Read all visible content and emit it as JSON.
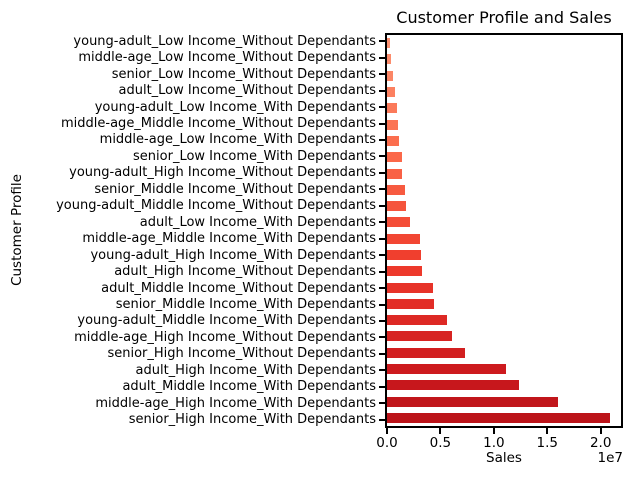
{
  "figure": {
    "background": "#ffffff",
    "axes_color": "#000000"
  },
  "chart_data": {
    "type": "bar",
    "orientation": "horizontal",
    "title": "Customer Profile and Sales",
    "xlabel": "Sales",
    "ylabel": "Customer Profile",
    "x_offset_label": "1e7",
    "xlim": [
      0,
      21900000
    ],
    "grid": false,
    "legend": null,
    "x_ticks": [
      {
        "value": 0,
        "label": "0.0"
      },
      {
        "value": 5000000,
        "label": "0.5"
      },
      {
        "value": 10000000,
        "label": "1.0"
      },
      {
        "value": 15000000,
        "label": "1.5"
      },
      {
        "value": 20000000,
        "label": "2.0"
      }
    ],
    "bars": [
      {
        "label": "young-adult_Low Income_Without Dependants",
        "value": 280000,
        "color": "#fc9272"
      },
      {
        "label": "middle-age_Low Income_Without Dependants",
        "value": 370000,
        "color": "#fc8c6c"
      },
      {
        "label": "senior_Low Income_Without Dependants",
        "value": 550000,
        "color": "#fc8666"
      },
      {
        "label": "adult_Low Income_Without Dependants",
        "value": 780000,
        "color": "#fc8060"
      },
      {
        "label": "young-adult_Low Income_With Dependants",
        "value": 950000,
        "color": "#fb7a5a"
      },
      {
        "label": "middle-age_Middle Income_Without Dependants",
        "value": 1070000,
        "color": "#fb7454"
      },
      {
        "label": "middle-age_Low Income_With Dependants",
        "value": 1080000,
        "color": "#fb6e4e"
      },
      {
        "label": "senior_Low Income_With Dependants",
        "value": 1380000,
        "color": "#fb6849"
      },
      {
        "label": "young-adult_High Income_Without Dependants",
        "value": 1440000,
        "color": "#f96145"
      },
      {
        "label": "senior_Middle Income_Without Dependants",
        "value": 1650000,
        "color": "#f75a40"
      },
      {
        "label": "young-adult_Middle Income_Without Dependants",
        "value": 1750000,
        "color": "#f5543c"
      },
      {
        "label": "adult_Low Income_With Dependants",
        "value": 2170000,
        "color": "#f44d37"
      },
      {
        "label": "middle-age_Middle Income_With Dependants",
        "value": 3120000,
        "color": "#f24633"
      },
      {
        "label": "young-adult_High Income_With Dependants",
        "value": 3220000,
        "color": "#f03f2e"
      },
      {
        "label": "adult_High Income_Without Dependants",
        "value": 3280000,
        "color": "#ed392b"
      },
      {
        "label": "adult_Middle Income_Without Dependants",
        "value": 4290000,
        "color": "#e73329"
      },
      {
        "label": "senior_Middle Income_With Dependants",
        "value": 4440000,
        "color": "#e22e27"
      },
      {
        "label": "young-adult_Middle Income_With Dependants",
        "value": 5580000,
        "color": "#dd2924"
      },
      {
        "label": "middle-age_High Income_Without Dependants",
        "value": 6130000,
        "color": "#d72422"
      },
      {
        "label": "senior_High Income_Without Dependants",
        "value": 7290000,
        "color": "#d21f20"
      },
      {
        "label": "adult_High Income_With Dependants",
        "value": 11100000,
        "color": "#cd1a1e"
      },
      {
        "label": "adult_Middle Income_With Dependants",
        "value": 12390000,
        "color": "#c7171c"
      },
      {
        "label": "middle-age_High Income_With Dependants",
        "value": 16000000,
        "color": "#c1161b"
      },
      {
        "label": "senior_High Income_With Dependants",
        "value": 20900000,
        "color": "#bc141a"
      }
    ]
  }
}
